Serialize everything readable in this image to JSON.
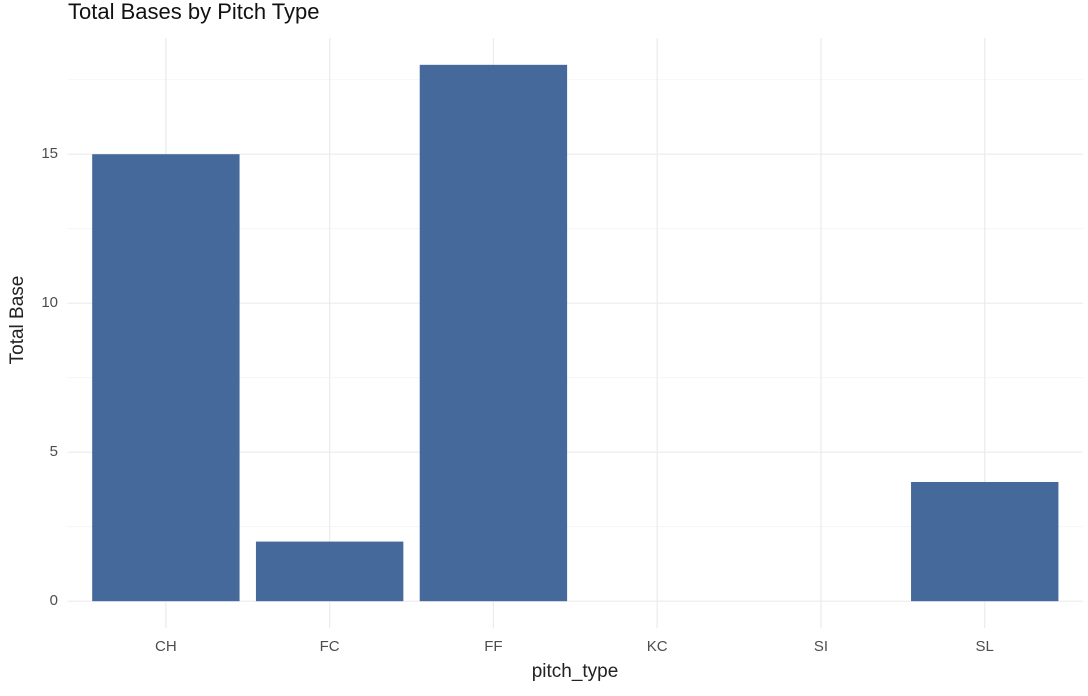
{
  "chart_data": {
    "type": "bar",
    "title": "Total Bases by Pitch Type",
    "x_label": "pitch_type",
    "y_label": "Total Base",
    "categories": [
      "CH",
      "FC",
      "FF",
      "KC",
      "SI",
      "SL"
    ],
    "values": [
      15,
      2,
      18,
      0,
      0,
      4
    ],
    "color": "#46699b",
    "ylim": [
      -0.9,
      18.9
    ],
    "yticks": [
      0,
      5,
      10,
      15
    ],
    "minor_yticks": [
      2.5,
      7.5,
      12.5,
      17.5
    ],
    "grid": true
  }
}
